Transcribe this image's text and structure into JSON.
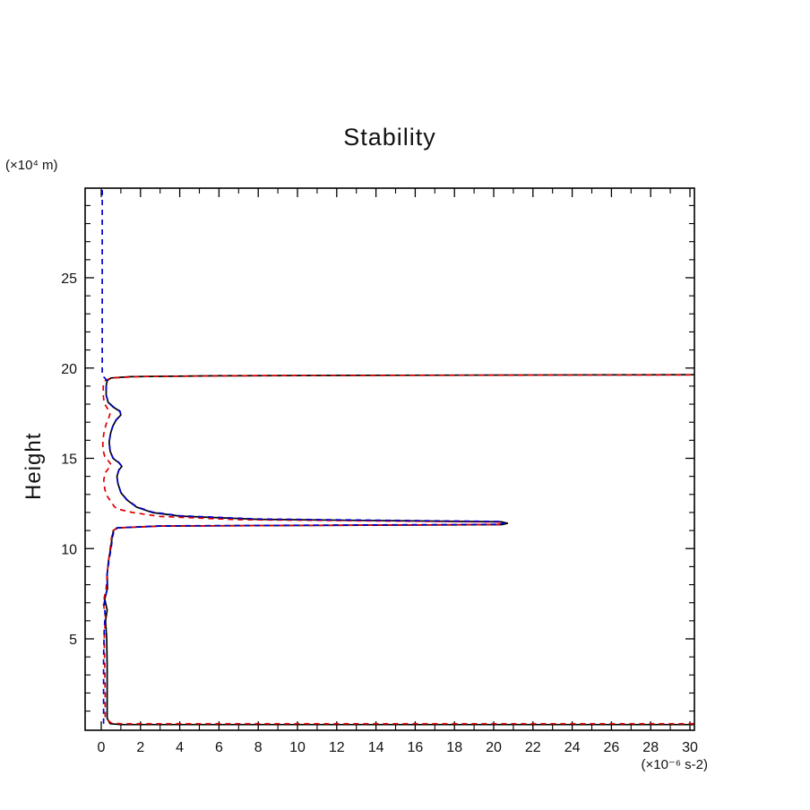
{
  "chart_data": {
    "type": "line",
    "title": "Stability",
    "xlabel": "(×10⁻⁶ s-2)",
    "ylabel": "Height",
    "grid": false,
    "legend": "none",
    "x_axis": {
      "unit_label": "(×10⁻⁶ s-2)",
      "min": 0,
      "max": 30,
      "major_ticks": [
        0,
        2,
        4,
        6,
        8,
        10,
        12,
        14,
        16,
        18,
        20,
        22,
        24,
        26,
        28,
        30
      ],
      "minor_tick_step": 1
    },
    "y_axis": {
      "label": "Height",
      "unit_label": "(×10⁴ m)",
      "min": 0,
      "max": 30,
      "major_ticks": [
        5,
        10,
        15,
        20,
        25
      ],
      "minor_tick_step": 1
    },
    "series": [
      {
        "name": "solid-black",
        "style": "solid",
        "color": "#000000",
        "dash": "none",
        "points": [
          [
            30.2,
            0.25
          ],
          [
            1.0,
            0.25
          ],
          [
            0.45,
            0.3
          ],
          [
            0.3,
            0.6
          ],
          [
            0.3,
            2.0
          ],
          [
            0.3,
            3.5
          ],
          [
            0.28,
            5.0
          ],
          [
            0.22,
            6.0
          ],
          [
            0.3,
            6.6
          ],
          [
            0.18,
            7.2
          ],
          [
            0.32,
            7.8
          ],
          [
            0.3,
            8.6
          ],
          [
            0.38,
            9.4
          ],
          [
            0.48,
            10.0
          ],
          [
            0.55,
            10.6
          ],
          [
            0.62,
            11.0
          ],
          [
            0.8,
            11.15
          ],
          [
            3.0,
            11.25
          ],
          [
            20.4,
            11.33
          ],
          [
            20.7,
            11.4
          ],
          [
            20.4,
            11.48
          ],
          [
            8.0,
            11.62
          ],
          [
            4.0,
            11.8
          ],
          [
            2.6,
            12.0
          ],
          [
            1.8,
            12.3
          ],
          [
            1.3,
            12.7
          ],
          [
            1.0,
            13.1
          ],
          [
            0.85,
            13.6
          ],
          [
            0.8,
            14.0
          ],
          [
            0.9,
            14.35
          ],
          [
            1.05,
            14.55
          ],
          [
            0.9,
            14.75
          ],
          [
            0.6,
            15.0
          ],
          [
            0.45,
            15.4
          ],
          [
            0.4,
            15.9
          ],
          [
            0.48,
            16.4
          ],
          [
            0.6,
            16.8
          ],
          [
            0.75,
            17.1
          ],
          [
            1.0,
            17.4
          ],
          [
            0.95,
            17.6
          ],
          [
            0.6,
            17.85
          ],
          [
            0.35,
            18.1
          ],
          [
            0.25,
            18.5
          ],
          [
            0.25,
            19.0
          ],
          [
            0.3,
            19.3
          ],
          [
            0.5,
            19.45
          ],
          [
            1.5,
            19.52
          ],
          [
            6.0,
            19.57
          ],
          [
            15.0,
            19.6
          ],
          [
            30.2,
            19.63
          ]
        ]
      },
      {
        "name": "dashed-red",
        "style": "dashed",
        "color": "#dd0000",
        "dash": "6,5",
        "points": [
          [
            30.2,
            0.3
          ],
          [
            1.0,
            0.3
          ],
          [
            0.5,
            0.35
          ],
          [
            0.2,
            0.6
          ],
          [
            0.2,
            2.0
          ],
          [
            0.18,
            3.5
          ],
          [
            0.15,
            5.0
          ],
          [
            0.22,
            6.2
          ],
          [
            0.1,
            7.0
          ],
          [
            0.25,
            7.8
          ],
          [
            0.3,
            8.6
          ],
          [
            0.38,
            9.4
          ],
          [
            0.45,
            10.0
          ],
          [
            0.52,
            10.6
          ],
          [
            0.6,
            11.0
          ],
          [
            0.85,
            11.15
          ],
          [
            3.0,
            11.25
          ],
          [
            20.2,
            11.33
          ],
          [
            20.45,
            11.4
          ],
          [
            20.2,
            11.47
          ],
          [
            7.0,
            11.6
          ],
          [
            3.0,
            11.78
          ],
          [
            1.6,
            12.0
          ],
          [
            0.8,
            12.2
          ],
          [
            0.65,
            12.35
          ],
          [
            0.5,
            12.6
          ],
          [
            0.3,
            12.9
          ],
          [
            0.18,
            13.3
          ],
          [
            0.13,
            13.8
          ],
          [
            0.2,
            14.2
          ],
          [
            0.42,
            14.5
          ],
          [
            0.5,
            14.65
          ],
          [
            0.4,
            14.8
          ],
          [
            0.18,
            15.1
          ],
          [
            0.08,
            15.5
          ],
          [
            0.08,
            16.0
          ],
          [
            0.15,
            16.5
          ],
          [
            0.25,
            16.9
          ],
          [
            0.4,
            17.3
          ],
          [
            0.45,
            17.5
          ],
          [
            0.32,
            17.75
          ],
          [
            0.15,
            18.05
          ],
          [
            0.1,
            18.5
          ],
          [
            0.1,
            19.0
          ],
          [
            0.2,
            19.3
          ],
          [
            0.5,
            19.45
          ],
          [
            2.0,
            19.53
          ],
          [
            8.0,
            19.58
          ],
          [
            30.2,
            19.62
          ]
        ]
      },
      {
        "name": "dashed-blue",
        "style": "dashed",
        "color": "#0000cc",
        "dash": "6,5",
        "points": [
          [
            0.12,
            0.3
          ],
          [
            0.12,
            2.0
          ],
          [
            0.12,
            4.0
          ],
          [
            0.15,
            5.5
          ],
          [
            0.2,
            6.3
          ],
          [
            0.15,
            7.0
          ],
          [
            0.3,
            7.8
          ],
          [
            0.3,
            8.6
          ],
          [
            0.4,
            9.4
          ],
          [
            0.5,
            10.0
          ],
          [
            0.57,
            10.6
          ],
          [
            0.65,
            11.0
          ],
          [
            0.85,
            11.15
          ],
          [
            3.0,
            11.26
          ],
          [
            20.3,
            11.34
          ],
          [
            20.55,
            11.42
          ],
          [
            20.3,
            11.5
          ],
          [
            8.0,
            11.64
          ],
          [
            4.0,
            11.82
          ],
          [
            2.6,
            12.02
          ],
          [
            1.8,
            12.32
          ],
          [
            1.3,
            12.72
          ],
          [
            1.0,
            13.12
          ],
          [
            0.85,
            13.62
          ],
          [
            0.8,
            14.02
          ],
          [
            0.9,
            14.37
          ],
          [
            1.05,
            14.57
          ],
          [
            0.9,
            14.77
          ],
          [
            0.6,
            15.02
          ],
          [
            0.45,
            15.42
          ],
          [
            0.4,
            15.92
          ],
          [
            0.48,
            16.42
          ],
          [
            0.6,
            16.82
          ],
          [
            0.75,
            17.12
          ],
          [
            1.0,
            17.42
          ],
          [
            0.95,
            17.62
          ],
          [
            0.6,
            17.87
          ],
          [
            0.35,
            18.12
          ],
          [
            0.25,
            18.52
          ],
          [
            0.25,
            19.0
          ],
          [
            0.3,
            19.3
          ],
          [
            0.2,
            19.42
          ],
          [
            0.08,
            19.55
          ],
          [
            0.05,
            19.8
          ],
          [
            0.05,
            22.0
          ],
          [
            0.05,
            25.0
          ],
          [
            0.05,
            28.0
          ],
          [
            0.05,
            29.9
          ]
        ]
      }
    ]
  }
}
